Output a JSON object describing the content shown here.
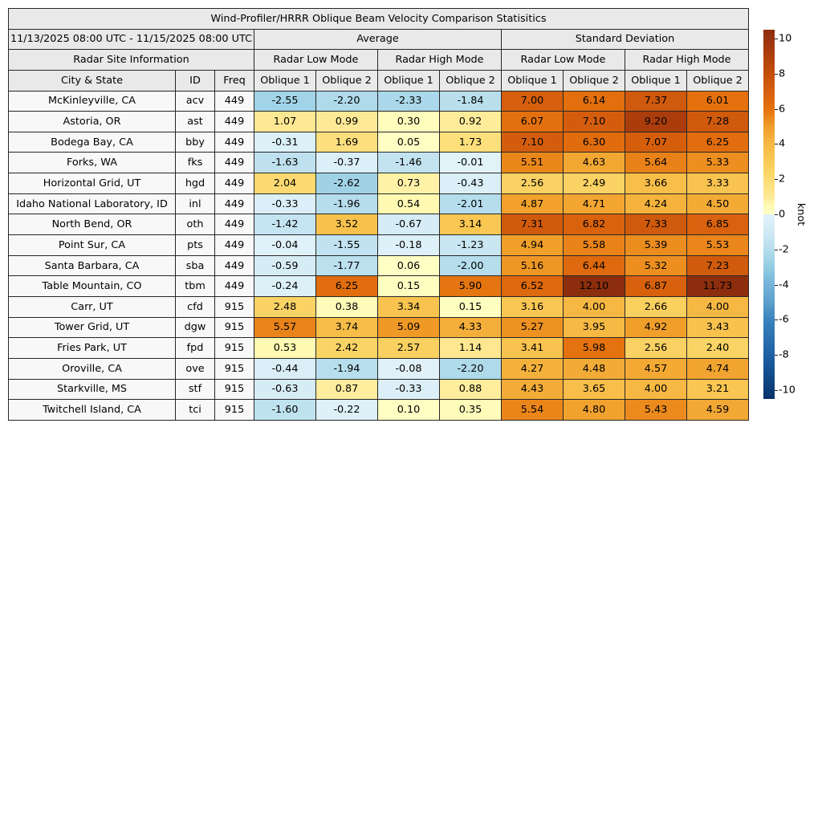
{
  "chart_data": {
    "type": "heatmap",
    "title": "Wind-Profiler/HRRR Oblique Beam Velocity Comparison Statisitics",
    "date_range": "11/13/2025 08:00 UTC - 11/15/2025 08:00 UTC",
    "group_labels": {
      "site_info": "Radar Site Information",
      "average": "Average",
      "std_dev": "Standard Deviation",
      "low_mode": "Radar Low Mode",
      "high_mode": "Radar High Mode"
    },
    "columns": {
      "city": "City & State",
      "id": "ID",
      "freq": "Freq",
      "oblique1": "Oblique 1",
      "oblique2": "Oblique 2"
    },
    "rows": [
      {
        "city": "McKinleyville, CA",
        "id": "acv",
        "freq": "449",
        "values": [
          -2.55,
          -2.2,
          -2.33,
          -1.84,
          7.0,
          6.14,
          7.37,
          6.01
        ]
      },
      {
        "city": "Astoria, OR",
        "id": "ast",
        "freq": "449",
        "values": [
          1.07,
          0.99,
          0.3,
          0.92,
          6.07,
          7.1,
          9.2,
          7.28
        ]
      },
      {
        "city": "Bodega Bay, CA",
        "id": "bby",
        "freq": "449",
        "values": [
          -0.31,
          1.69,
          0.05,
          1.73,
          7.1,
          6.3,
          7.07,
          6.25
        ]
      },
      {
        "city": "Forks, WA",
        "id": "fks",
        "freq": "449",
        "values": [
          -1.63,
          -0.37,
          -1.46,
          -0.01,
          5.51,
          4.63,
          5.64,
          5.33
        ]
      },
      {
        "city": "Horizontal Grid, UT",
        "id": "hgd",
        "freq": "449",
        "values": [
          2.04,
          -2.62,
          0.73,
          -0.43,
          2.56,
          2.49,
          3.66,
          3.33
        ]
      },
      {
        "city": "Idaho National Laboratory, ID",
        "id": "inl",
        "freq": "449",
        "values": [
          -0.33,
          -1.96,
          0.54,
          -2.01,
          4.87,
          4.71,
          4.24,
          4.5
        ]
      },
      {
        "city": "North Bend, OR",
        "id": "oth",
        "freq": "449",
        "values": [
          -1.42,
          3.52,
          -0.67,
          3.14,
          7.31,
          6.82,
          7.33,
          6.85
        ]
      },
      {
        "city": "Point Sur, CA",
        "id": "pts",
        "freq": "449",
        "values": [
          -0.04,
          -1.55,
          -0.18,
          -1.23,
          4.94,
          5.58,
          5.39,
          5.53
        ]
      },
      {
        "city": "Santa Barbara, CA",
        "id": "sba",
        "freq": "449",
        "values": [
          -0.59,
          -1.77,
          0.06,
          -2.0,
          5.16,
          6.44,
          5.32,
          7.23
        ]
      },
      {
        "city": "Table Mountain, CO",
        "id": "tbm",
        "freq": "449",
        "values": [
          -0.24,
          6.25,
          0.15,
          5.9,
          6.52,
          12.1,
          6.87,
          11.73
        ]
      },
      {
        "city": "Carr, UT",
        "id": "cfd",
        "freq": "915",
        "values": [
          2.48,
          0.38,
          3.34,
          0.15,
          3.16,
          4.0,
          2.66,
          4.0
        ]
      },
      {
        "city": "Tower Grid, UT",
        "id": "dgw",
        "freq": "915",
        "values": [
          5.57,
          3.74,
          5.09,
          4.33,
          5.27,
          3.95,
          4.92,
          3.43
        ]
      },
      {
        "city": "Fries Park, UT",
        "id": "fpd",
        "freq": "915",
        "values": [
          0.53,
          2.42,
          2.57,
          1.14,
          3.41,
          5.98,
          2.56,
          2.4
        ]
      },
      {
        "city": "Oroville, CA",
        "id": "ove",
        "freq": "915",
        "values": [
          -0.44,
          -1.94,
          -0.08,
          -2.2,
          4.27,
          4.48,
          4.57,
          4.74
        ]
      },
      {
        "city": "Starkville, MS",
        "id": "stf",
        "freq": "915",
        "values": [
          -0.63,
          0.87,
          -0.33,
          0.88,
          4.43,
          3.65,
          4.0,
          3.21
        ]
      },
      {
        "city": "Twitchell Island, CA",
        "id": "tci",
        "freq": "915",
        "values": [
          -1.6,
          -0.22,
          0.1,
          0.35,
          5.54,
          4.8,
          5.43,
          4.59
        ]
      }
    ],
    "colorbar": {
      "label": "knot",
      "ticks": [
        10,
        8,
        6,
        4,
        2,
        0,
        -2,
        -4,
        -6,
        -8,
        -10
      ],
      "vmin": -10.5,
      "vmax": 10.5
    },
    "colormap_stops": [
      [
        -10.5,
        "#08306b"
      ],
      [
        -10,
        "#0b3d77"
      ],
      [
        -8,
        "#1d60a5"
      ],
      [
        -6,
        "#3a83bd"
      ],
      [
        -5,
        "#5da0cc"
      ],
      [
        -4,
        "#74b3d8"
      ],
      [
        -3,
        "#93cce3"
      ],
      [
        -2,
        "#b5ddec"
      ],
      [
        -1,
        "#cfe9f4"
      ],
      [
        -0.5,
        "#d9eef7"
      ],
      [
        -0.005,
        "#e1f2f9"
      ],
      [
        0,
        "#ffffc6"
      ],
      [
        0.5,
        "#fffab5"
      ],
      [
        1,
        "#fee995"
      ],
      [
        2,
        "#fcdb72"
      ],
      [
        3,
        "#f9ca55"
      ],
      [
        4,
        "#f6b843"
      ],
      [
        5,
        "#f09d29"
      ],
      [
        6,
        "#e4710e"
      ],
      [
        7,
        "#d65f0d"
      ],
      [
        8,
        "#c24e0a"
      ],
      [
        9,
        "#b03f0c"
      ],
      [
        10,
        "#98330f"
      ],
      [
        10.5,
        "#8c2e0e"
      ]
    ],
    "styles": {
      "header_bg": "#e9e9e9",
      "site_bg": "#f8f8f8",
      "border": "#262626",
      "text": "#000000"
    }
  }
}
